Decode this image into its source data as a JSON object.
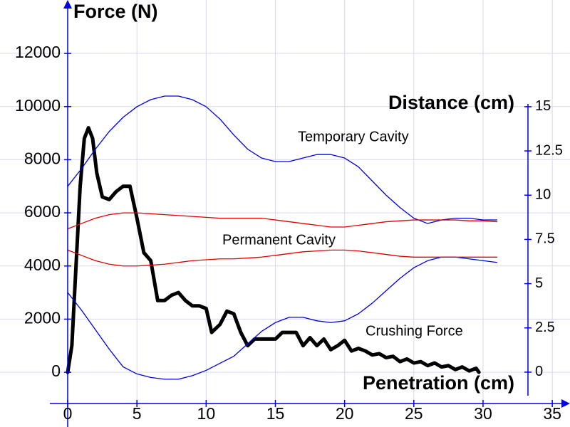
{
  "chart_data": {
    "type": "line",
    "title": "Force (N)",
    "x_label": "Penetration (cm)",
    "y2_label": "Distance (cm)",
    "annotations": [
      "Temporary Cavity",
      "Permanent Cavity",
      "Crushing Force"
    ],
    "xlim": [
      -4.89,
      36.28
    ],
    "ylim": [
      -2060,
      14010
    ],
    "y2lim": [
      -3.1,
      21.03
    ],
    "xticks": [
      0,
      5,
      10,
      15,
      20,
      25,
      30,
      35
    ],
    "yticks": [
      0,
      2000,
      4000,
      6000,
      8000,
      10000,
      12000
    ],
    "y2ticks": [
      0,
      2.5,
      5,
      7.5,
      10,
      12.5,
      15
    ],
    "grid": true,
    "x": [
      0,
      1,
      2,
      3,
      4,
      5,
      6,
      7,
      8,
      9,
      10,
      11,
      12,
      13,
      14,
      15,
      16,
      17,
      18,
      19,
      20,
      21,
      22,
      23,
      24,
      25,
      26,
      27,
      28,
      29,
      30,
      31
    ],
    "series": [
      {
        "color": "#000000",
        "axis": "y",
        "x": [
          0,
          0.3,
          0.6,
          0.9,
          1.2,
          1.5,
          1.8,
          2.1,
          2.5,
          3,
          3.5,
          4,
          4.5,
          5,
          5.5,
          6,
          6.5,
          7,
          7.5,
          8,
          8.5,
          9,
          9.5,
          10,
          10.4,
          11,
          11.5,
          12,
          12.5,
          13,
          13.5,
          14,
          15,
          15.5,
          16.5,
          17,
          17.5,
          18,
          18.5,
          19,
          19.5,
          20,
          20.5,
          21,
          21.5,
          22,
          22.5,
          23,
          23.5,
          24,
          24.5,
          25,
          25.5,
          26,
          26.5,
          27,
          27.5,
          28,
          28.5,
          29,
          29.5,
          29.7
        ],
        "values": [
          0,
          1000,
          4000,
          7000,
          8800,
          9200,
          8800,
          7500,
          6600,
          6500,
          6800,
          7000,
          7000,
          5800,
          4500,
          4200,
          2700,
          2700,
          2900,
          3000,
          2700,
          2500,
          2500,
          2400,
          1500,
          1800,
          2300,
          2200,
          1500,
          1000,
          1250,
          1250,
          1250,
          1500,
          1500,
          1000,
          1300,
          1000,
          1250,
          850,
          1000,
          1200,
          800,
          900,
          800,
          650,
          700,
          550,
          600,
          400,
          500,
          350,
          400,
          250,
          350,
          200,
          250,
          100,
          200,
          50,
          150,
          0
        ]
      },
      {
        "color": "#0000e0",
        "axis": "y2",
        "values": [
          10.5,
          11.5,
          12.6,
          13.6,
          14.4,
          15,
          15.4,
          15.6,
          15.6,
          15.4,
          15,
          14.3,
          13.4,
          12.6,
          12.1,
          11.9,
          11.9,
          12.1,
          12.3,
          12.3,
          12.1,
          11.6,
          10.8,
          10,
          9.3,
          8.7,
          8.4,
          8.6,
          8.7,
          8.7,
          8.6,
          8.6
        ]
      },
      {
        "color": "#0000e0",
        "axis": "y2",
        "values": [
          4.5,
          3.5,
          2.4,
          1.3,
          0.3,
          -0.1,
          -0.3,
          -0.4,
          -0.4,
          -0.2,
          0.1,
          0.5,
          0.9,
          1.6,
          2.3,
          2.8,
          3.1,
          3.1,
          2.9,
          2.8,
          2.9,
          3.3,
          3.9,
          4.6,
          5.3,
          5.9,
          6.3,
          6.5,
          6.5,
          6.4,
          6.3,
          6.2
        ]
      },
      {
        "color": "#e00000",
        "axis": "y2",
        "values": [
          8.1,
          8.4,
          8.7,
          8.9,
          9.0,
          9.0,
          8.95,
          8.9,
          8.85,
          8.8,
          8.75,
          8.7,
          8.7,
          8.7,
          8.7,
          8.6,
          8.5,
          8.4,
          8.3,
          8.2,
          8.2,
          8.3,
          8.4,
          8.5,
          8.55,
          8.6,
          8.6,
          8.6,
          8.6,
          8.55,
          8.55,
          8.5
        ]
      },
      {
        "color": "#e00000",
        "axis": "y2",
        "values": [
          6.9,
          6.6,
          6.3,
          6.1,
          6.0,
          6.0,
          6.05,
          6.1,
          6.2,
          6.3,
          6.35,
          6.4,
          6.4,
          6.45,
          6.5,
          6.6,
          6.7,
          6.8,
          6.85,
          6.9,
          6.9,
          6.85,
          6.75,
          6.65,
          6.55,
          6.5,
          6.5,
          6.5,
          6.5,
          6.5,
          6.5,
          6.5
        ]
      }
    ]
  }
}
